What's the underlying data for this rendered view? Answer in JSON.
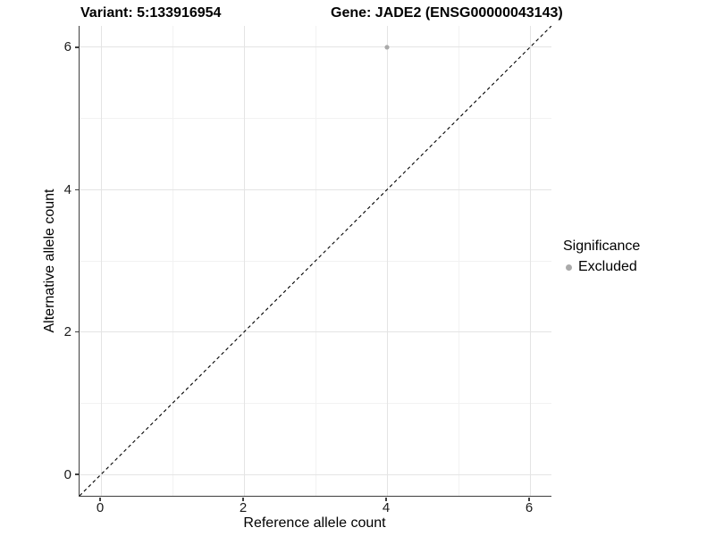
{
  "titles": {
    "variant": "Variant: 5:133916954",
    "gene": "Gene: JADE2 (ENSG00000043143)"
  },
  "chart_data": {
    "type": "scatter",
    "title_left": "Variant: 5:133916954",
    "title_right": "Gene: JADE2 (ENSG00000043143)",
    "xlabel": "Reference allele count",
    "ylabel": "Alternative allele count",
    "xlim": [
      -0.3,
      6.3
    ],
    "ylim": [
      -0.3,
      6.3
    ],
    "x_ticks": [
      0,
      2,
      4,
      6
    ],
    "y_ticks": [
      0,
      2,
      4,
      6
    ],
    "x_tick_labels": [
      "0",
      "2",
      "4",
      "6"
    ],
    "y_tick_labels": [
      "0",
      "2",
      "4",
      "6"
    ],
    "minor_x": [
      1,
      3,
      5
    ],
    "minor_y": [
      1,
      3,
      5
    ],
    "grid": true,
    "legend_position": "right",
    "legend_title": "Significance",
    "series": [
      {
        "name": "Excluded",
        "color": "#aaaaaa",
        "points": [
          {
            "x": 4,
            "y": 6
          }
        ]
      }
    ],
    "reference_line": {
      "type": "identity",
      "equation": "y = x",
      "style": "dashed",
      "color": "#000000"
    }
  },
  "colors": {
    "background": "#ffffff",
    "grid_major": "#e4e4e4",
    "grid_minor": "#f2f2f2",
    "axis_line": "#3f3f3f",
    "point": "#aaaaaa",
    "dashed_line": "#000000"
  }
}
